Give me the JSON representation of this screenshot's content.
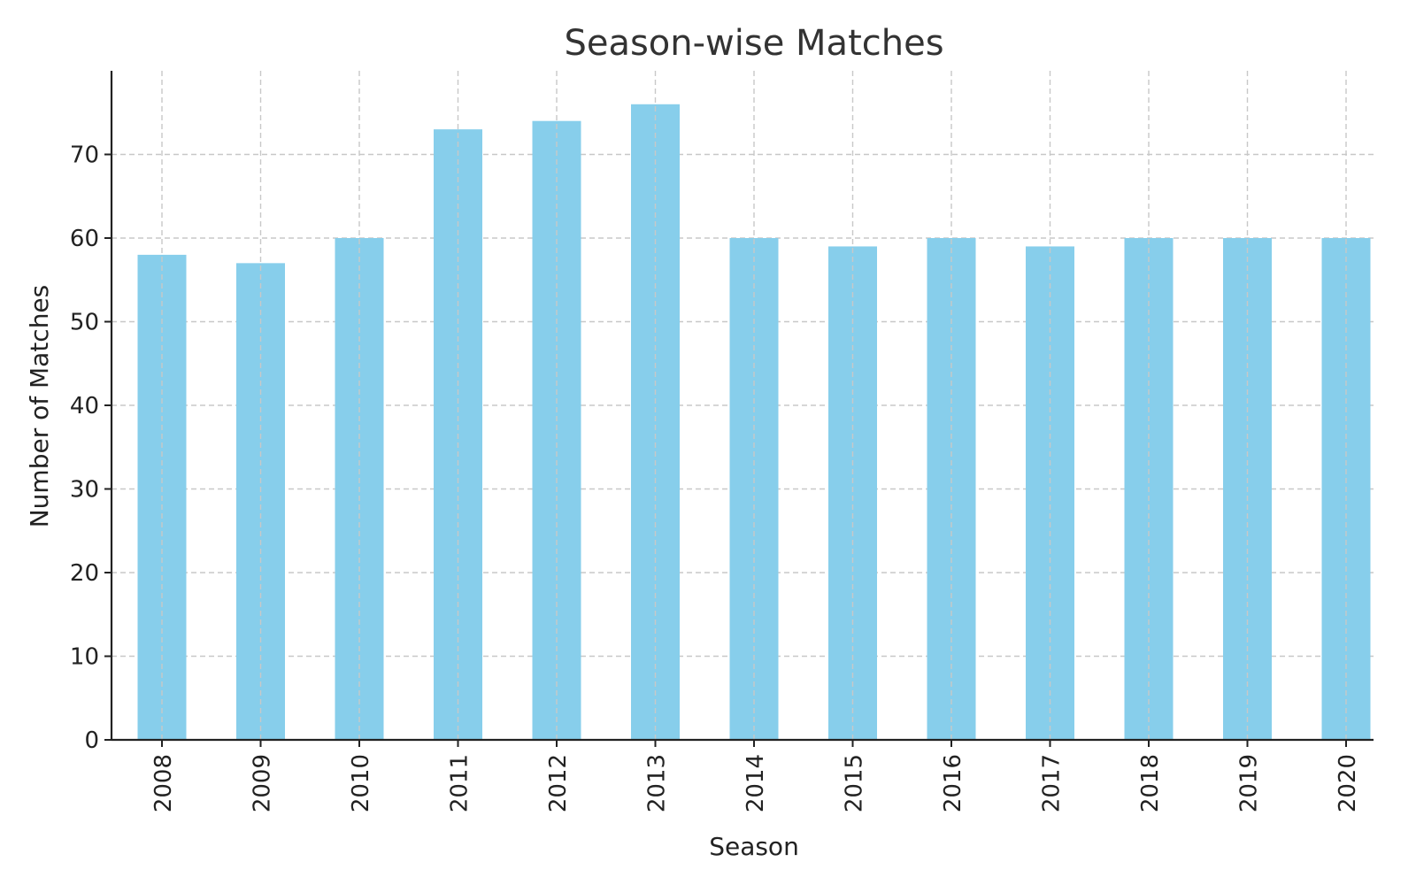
{
  "chart_data": {
    "type": "bar",
    "title": "Season-wise Matches",
    "xlabel": "Season",
    "ylabel": "Number of Matches",
    "categories": [
      "2008",
      "2009",
      "2010",
      "2011",
      "2012",
      "2013",
      "2014",
      "2015",
      "2016",
      "2017",
      "2018",
      "2019",
      "2020"
    ],
    "values": [
      58,
      57,
      60,
      73,
      74,
      76,
      60,
      59,
      60,
      59,
      60,
      60,
      60
    ],
    "ylim": [
      0,
      80
    ],
    "yticks": [
      0,
      10,
      20,
      30,
      40,
      50,
      60,
      70
    ],
    "grid": true,
    "bar_color": "#87ceeb",
    "grid_color": "#c8c8c8",
    "axis_color": "#222222"
  }
}
